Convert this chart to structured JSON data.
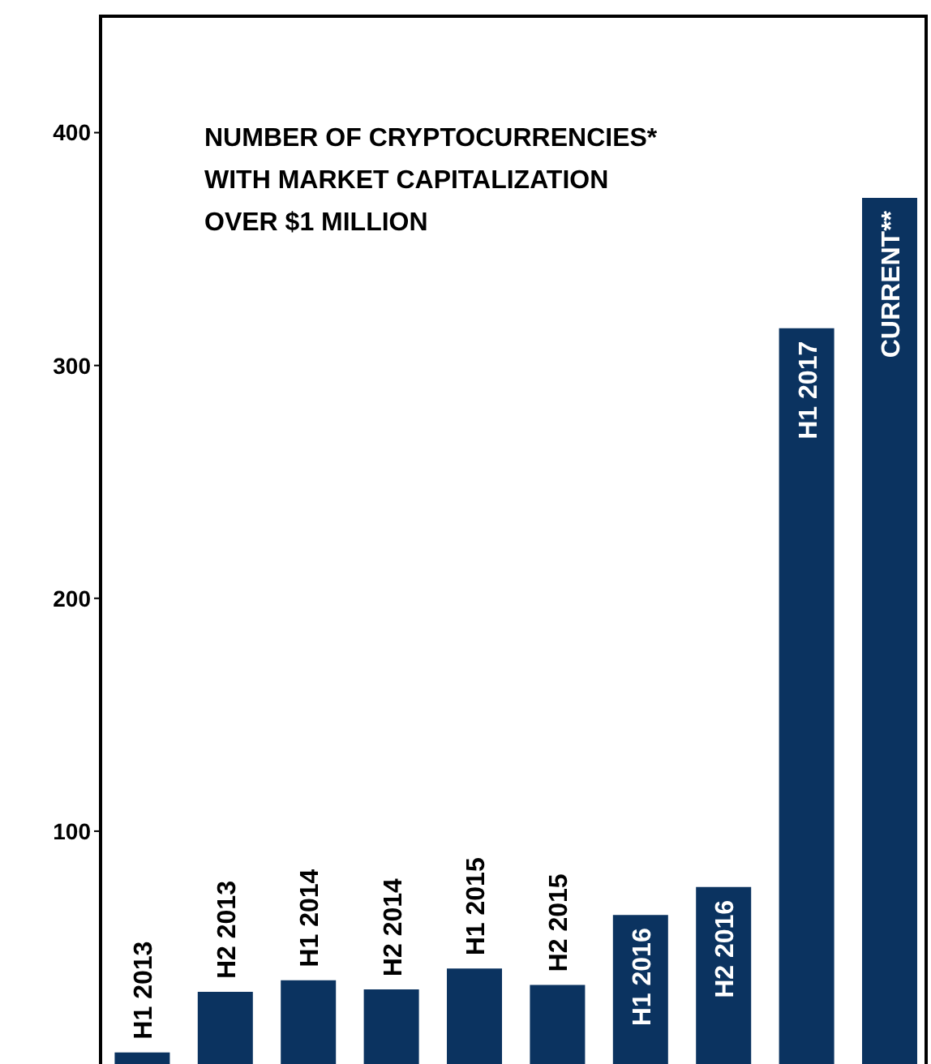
{
  "chart_data": {
    "type": "bar",
    "title": "NUMBER OF CRYPTOCURRENCIES* WITH MARKET CAPITALIZATION OVER $1 MILLION",
    "categories": [
      "H1 2013",
      "H2 2013",
      "H1 2014",
      "H2 2014",
      "H1 2015",
      "H2 2015",
      "H1 2016",
      "H2 2016",
      "H1 2017",
      "CURRENT**"
    ],
    "values": [
      5,
      31,
      36,
      32,
      41,
      34,
      64,
      76,
      316,
      372
    ],
    "color": "#0b3360",
    "ylim": [
      0,
      450
    ],
    "yticks": [
      100,
      200,
      300,
      400
    ]
  }
}
